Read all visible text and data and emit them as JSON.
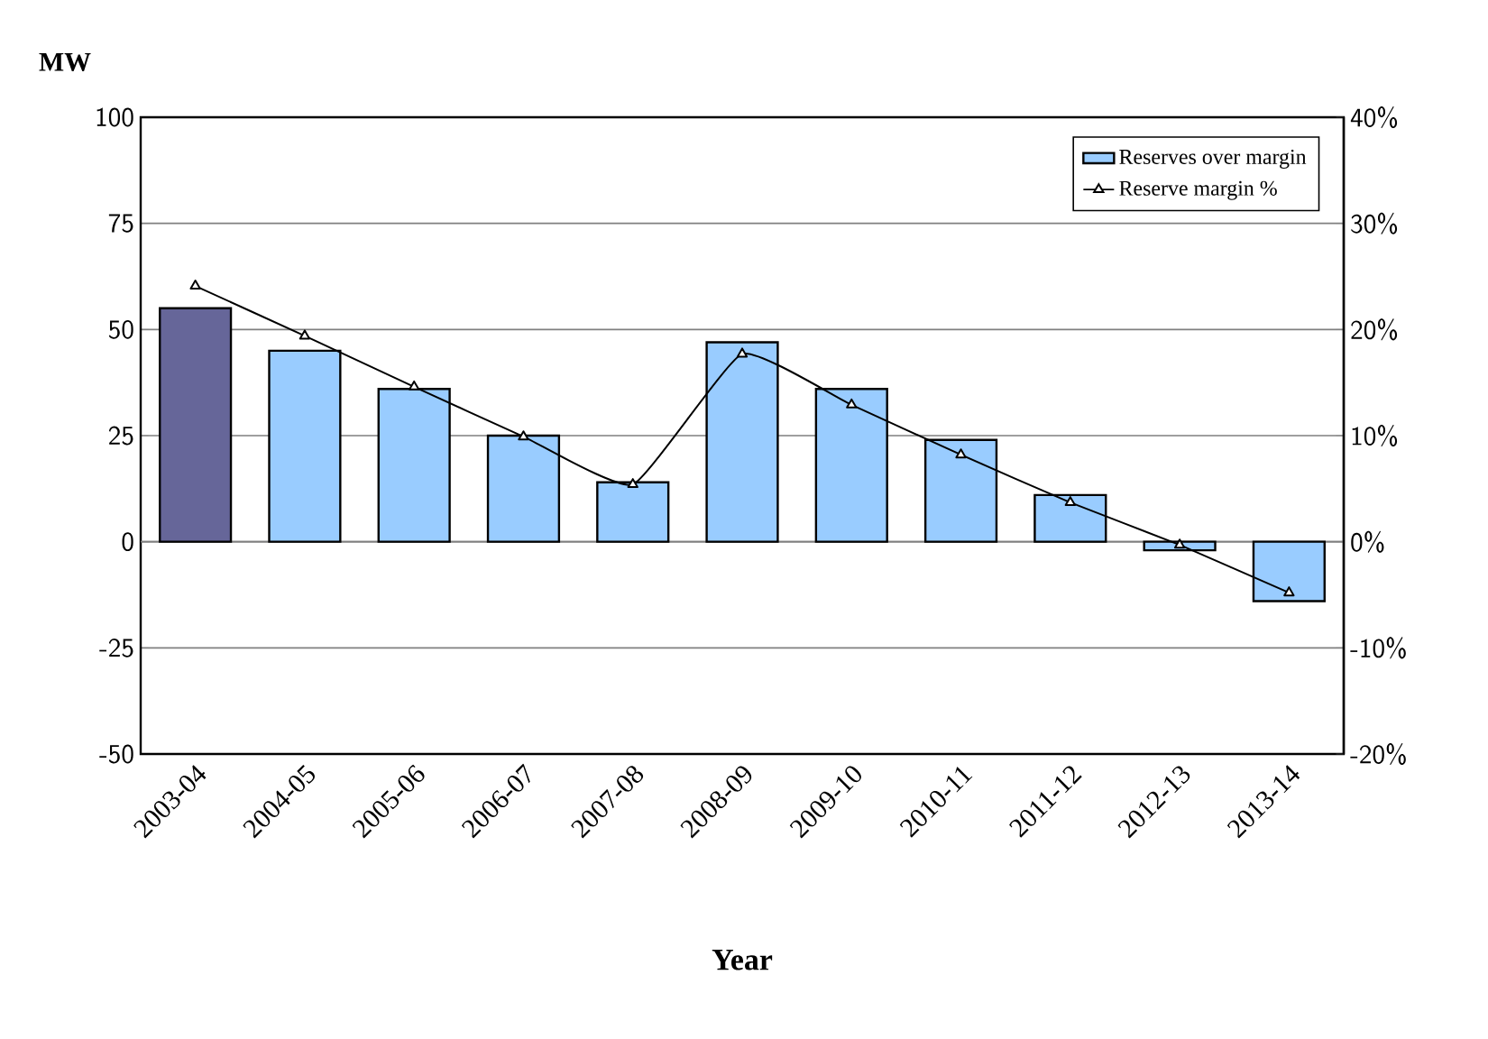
{
  "chart_data": {
    "type": "bar",
    "xlabel": "Year",
    "ylabel": "MW",
    "categories": [
      "2003-04",
      "2004-05",
      "2005-06",
      "2006-07",
      "2007-08",
      "2008-09",
      "2009-10",
      "2010-11",
      "2011-12",
      "2012-13",
      "2013-14"
    ],
    "ylim": [
      -50,
      100
    ],
    "yticks": [
      -50,
      -25,
      0,
      25,
      50,
      75,
      100
    ],
    "y2lim": [
      -20,
      40
    ],
    "y2ticks": [
      {
        "value": -20,
        "label": "-20%"
      },
      {
        "value": -10,
        "label": "-10%"
      },
      {
        "value": 0,
        "label": "0%"
      },
      {
        "value": 10,
        "label": "10%"
      },
      {
        "value": 20,
        "label": "20%"
      },
      {
        "value": 30,
        "label": "30%"
      },
      {
        "value": 40,
        "label": "40%"
      }
    ],
    "grid": "y",
    "legend": "top right",
    "series": [
      {
        "name": "Reserves over margin",
        "color": "#99ccff",
        "colors": [
          "#666699",
          "#99ccff",
          "#99ccff",
          "#99ccff",
          "#99ccff",
          "#99ccff",
          "#99ccff",
          "#99ccff",
          "#99ccff",
          "#99ccff",
          "#99ccff"
        ],
        "values": [
          55,
          45,
          36,
          25,
          14,
          47,
          36,
          24,
          11,
          -2,
          -14
        ]
      },
      {
        "name": "Reserve margin %",
        "type": "line",
        "axis": "y2",
        "color": "#000000",
        "marker": "triangle",
        "values": [
          24.1,
          19.4,
          14.6,
          9.9,
          5.4,
          17.7,
          12.9,
          8.2,
          3.7,
          -0.3,
          -4.8
        ]
      }
    ]
  }
}
